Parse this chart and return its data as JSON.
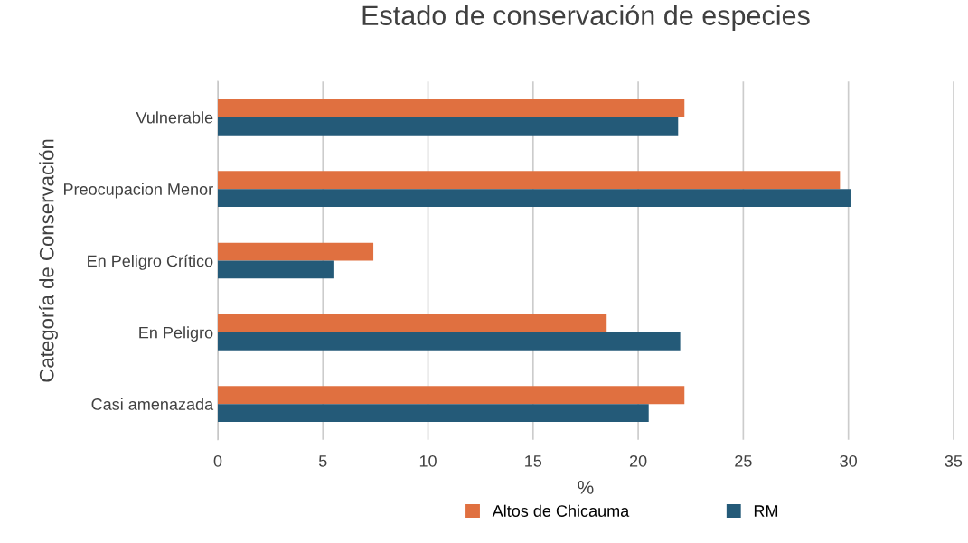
{
  "chart_data": {
    "type": "bar",
    "orientation": "horizontal",
    "title": "Estado de conservación de especies",
    "xlabel": "%",
    "ylabel": "Categoría de Conservación",
    "categories": [
      "Vulnerable",
      "Preocupacion Menor",
      "En Peligro Crítico",
      "En Peligro",
      "Casi amenazada"
    ],
    "series": [
      {
        "name": "Altos de Chicauma",
        "color": "#e07040",
        "values": [
          22.2,
          29.6,
          7.4,
          18.5,
          22.2
        ]
      },
      {
        "name": "RM",
        "color": "#245a78",
        "values": [
          21.9,
          30.1,
          5.5,
          22.0,
          20.5
        ]
      }
    ],
    "xlim": [
      0,
      35
    ],
    "xticks": [
      0,
      5,
      10,
      15,
      20,
      25,
      30,
      35
    ],
    "grid": "x",
    "legend": "bottom"
  }
}
